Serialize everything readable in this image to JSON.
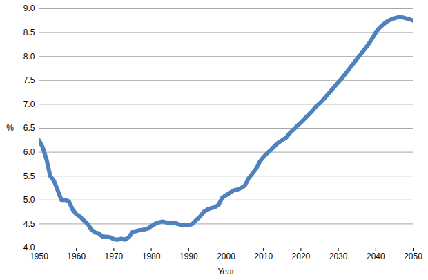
{
  "chart_data": {
    "type": "line",
    "x_label": "Year",
    "y_label": "%",
    "color": "#4f81bd",
    "grid": true,
    "xlim": [
      1950,
      2050
    ],
    "xticks": [
      1950,
      1960,
      1970,
      1980,
      1990,
      2000,
      2010,
      2020,
      2030,
      2040,
      2050
    ],
    "ylim": [
      4,
      9
    ],
    "yticks": [
      {
        "value": 4,
        "label": "4.0"
      },
      4.5,
      {
        "value": 5,
        "label": "5.0"
      },
      5.5,
      {
        "value": 6,
        "label": "6.0"
      },
      6.5,
      {
        "value": 7,
        "label": "7.0"
      },
      7.5,
      {
        "value": 8,
        "label": "8.0"
      },
      8.5,
      {
        "value": 9,
        "label": "9.0"
      }
    ],
    "x": [
      1950,
      1951,
      1952,
      1953,
      1954,
      1955,
      1956,
      1957,
      1958,
      1959,
      1960,
      1961,
      1962,
      1963,
      1964,
      1965,
      1966,
      1967,
      1968,
      1969,
      1970,
      1971,
      1972,
      1973,
      1974,
      1975,
      1976,
      1977,
      1978,
      1979,
      1980,
      1981,
      1982,
      1983,
      1984,
      1985,
      1986,
      1987,
      1988,
      1989,
      1990,
      1991,
      1992,
      1993,
      1994,
      1995,
      1996,
      1997,
      1998,
      1999,
      2000,
      2001,
      2002,
      2003,
      2004,
      2005,
      2006,
      2007,
      2008,
      2009,
      2010,
      2011,
      2012,
      2013,
      2014,
      2015,
      2016,
      2017,
      2018,
      2019,
      2020,
      2021,
      2022,
      2023,
      2024,
      2025,
      2026,
      2027,
      2028,
      2029,
      2030,
      2031,
      2032,
      2033,
      2034,
      2035,
      2036,
      2037,
      2038,
      2039,
      2040,
      2041,
      2042,
      2043,
      2044,
      2045,
      2046,
      2047,
      2048,
      2049,
      2050
    ],
    "values": [
      6.25,
      6.1,
      5.85,
      5.5,
      5.4,
      5.2,
      5.0,
      5.0,
      4.97,
      4.8,
      4.7,
      4.65,
      4.57,
      4.5,
      4.38,
      4.32,
      4.3,
      4.23,
      4.23,
      4.22,
      4.18,
      4.17,
      4.19,
      4.17,
      4.22,
      4.33,
      4.35,
      4.37,
      4.38,
      4.4,
      4.45,
      4.5,
      4.53,
      4.55,
      4.53,
      4.52,
      4.53,
      4.5,
      4.48,
      4.47,
      4.47,
      4.5,
      4.58,
      4.65,
      4.75,
      4.8,
      4.83,
      4.85,
      4.9,
      5.05,
      5.1,
      5.15,
      5.2,
      5.22,
      5.25,
      5.3,
      5.45,
      5.55,
      5.65,
      5.8,
      5.9,
      5.98,
      6.05,
      6.13,
      6.2,
      6.25,
      6.3,
      6.4,
      6.47,
      6.55,
      6.62,
      6.7,
      6.78,
      6.86,
      6.95,
      7.02,
      7.1,
      7.19,
      7.28,
      7.37,
      7.46,
      7.55,
      7.65,
      7.75,
      7.85,
      7.95,
      8.05,
      8.15,
      8.25,
      8.37,
      8.5,
      8.6,
      8.67,
      8.73,
      8.77,
      8.8,
      8.82,
      8.82,
      8.8,
      8.78,
      8.75
    ]
  }
}
